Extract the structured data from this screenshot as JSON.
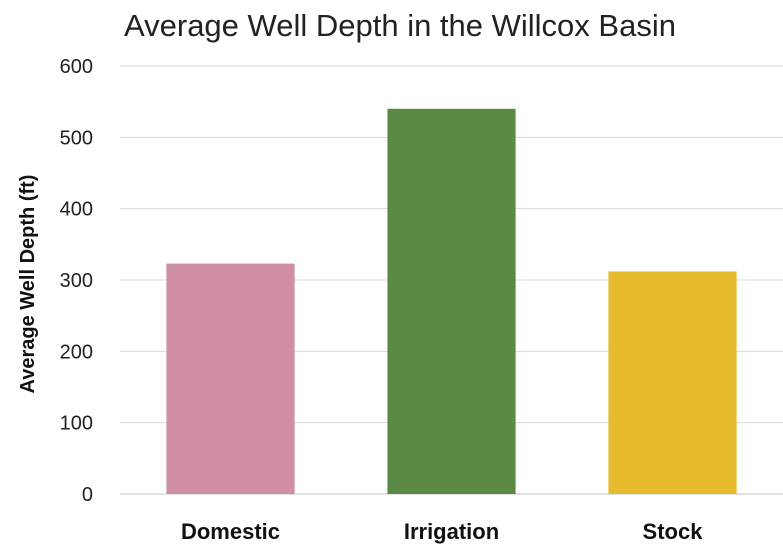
{
  "chart_data": {
    "type": "bar",
    "title": "Average Well Depth in the Willcox Basin",
    "xlabel": "",
    "ylabel": "Average Well Depth (ft)",
    "categories": [
      "Domestic",
      "Irrigation",
      "Stock"
    ],
    "values": [
      323,
      540,
      312
    ],
    "colors": [
      "#d08fa5",
      "#5a8a45",
      "#e6bb2e"
    ],
    "ylim": [
      0,
      600
    ],
    "yticks": [
      0,
      100,
      200,
      300,
      400,
      500,
      600
    ],
    "grid": true,
    "legend": "none"
  }
}
